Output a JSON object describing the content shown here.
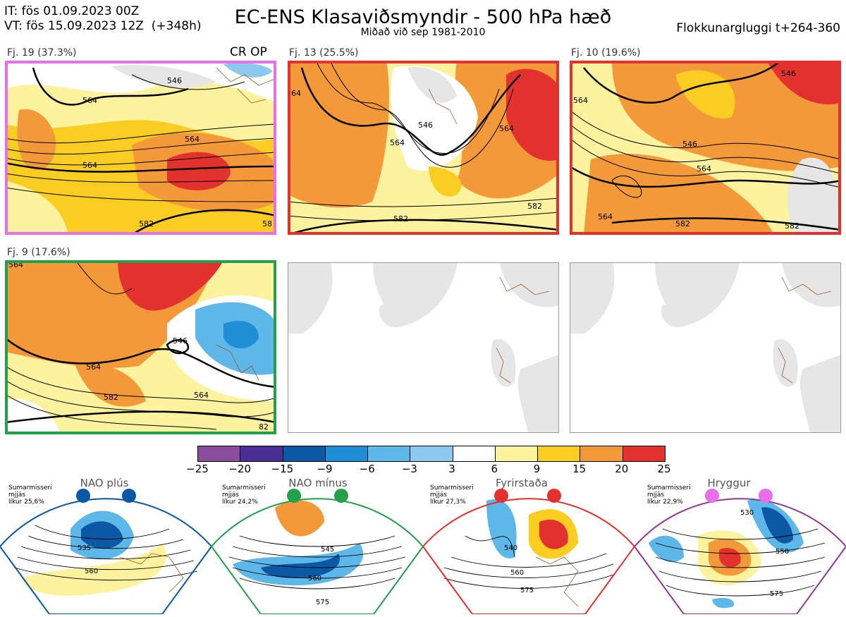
{
  "header": {
    "it": "IT: fös 01.09.2023 00Z",
    "vt_date": "VT: fös 15.09.2023 12Z",
    "vt_lead": "(+348h)",
    "title": "EC-ENS Klasaviðsmyndir - 500 hPa hæð",
    "subtitle": "Miðað við sep 1981-2010",
    "window": "Flokkunargluggi t+264-360"
  },
  "panels": [
    {
      "label": "Fj. 19 (37.3%)",
      "tag": "CR OP",
      "border": "#e96ee9",
      "contours": [
        "564",
        "546",
        "564",
        "564",
        "582",
        "58"
      ]
    },
    {
      "label": "Fj. 13 (25.5%)",
      "tag": "",
      "border": "#e3312e",
      "contours": [
        "64",
        "546",
        "564",
        "582",
        "564",
        "582"
      ]
    },
    {
      "label": "Fj. 10 (19.6%)",
      "tag": "",
      "border": "#e3312e",
      "contours": [
        "546",
        "564",
        "546",
        "564",
        "564",
        "582",
        "582"
      ]
    },
    {
      "label": "Fj. 9 (17.6%)",
      "tag": "",
      "border": "#22a04b",
      "contours": [
        "564",
        "546",
        "564",
        "582",
        "564",
        "82"
      ]
    }
  ],
  "colorbar": {
    "labels": [
      "−25",
      "−20",
      "−15",
      "−9",
      "−6",
      "−3",
      "3",
      "6",
      "9",
      "15",
      "20",
      "25"
    ],
    "colors": [
      "#8a4d9c",
      "#4a2e96",
      "#0b58a5",
      "#1e8fd6",
      "#5db7e8",
      "#8cc9ef",
      "#ffffff",
      "#fdf39e",
      "#f9cd22",
      "#f39939",
      "#e3312e",
      "#b3161b"
    ]
  },
  "regimes": [
    {
      "title": "NAO plús",
      "season": "Sumarmisseri",
      "note": "mjjás",
      "prob": "líkur 25,6%",
      "color": "#0b58a5",
      "contours": [
        "535",
        "560"
      ]
    },
    {
      "title": "NAO mínus",
      "season": "Sumarmisseri",
      "note": "mjjás",
      "prob": "líkur 24,2%",
      "color": "#22a04b",
      "contours": [
        "545",
        "560",
        "575"
      ]
    },
    {
      "title": "Fyrirstaða",
      "season": "Sumarmisseri",
      "note": "mjjás",
      "prob": "líkur 27,3%",
      "color": "#e3312e",
      "contours": [
        "540",
        "560",
        "575"
      ]
    },
    {
      "title": "Hryggur",
      "season": "Sumarmisseri",
      "note": "mjjás",
      "prob": "líkur 22,9%",
      "color": "#8f3a93",
      "contours": [
        "530",
        "550",
        "575"
      ]
    }
  ],
  "icons": {
    "regime_marker": "circle-marker-icon"
  }
}
